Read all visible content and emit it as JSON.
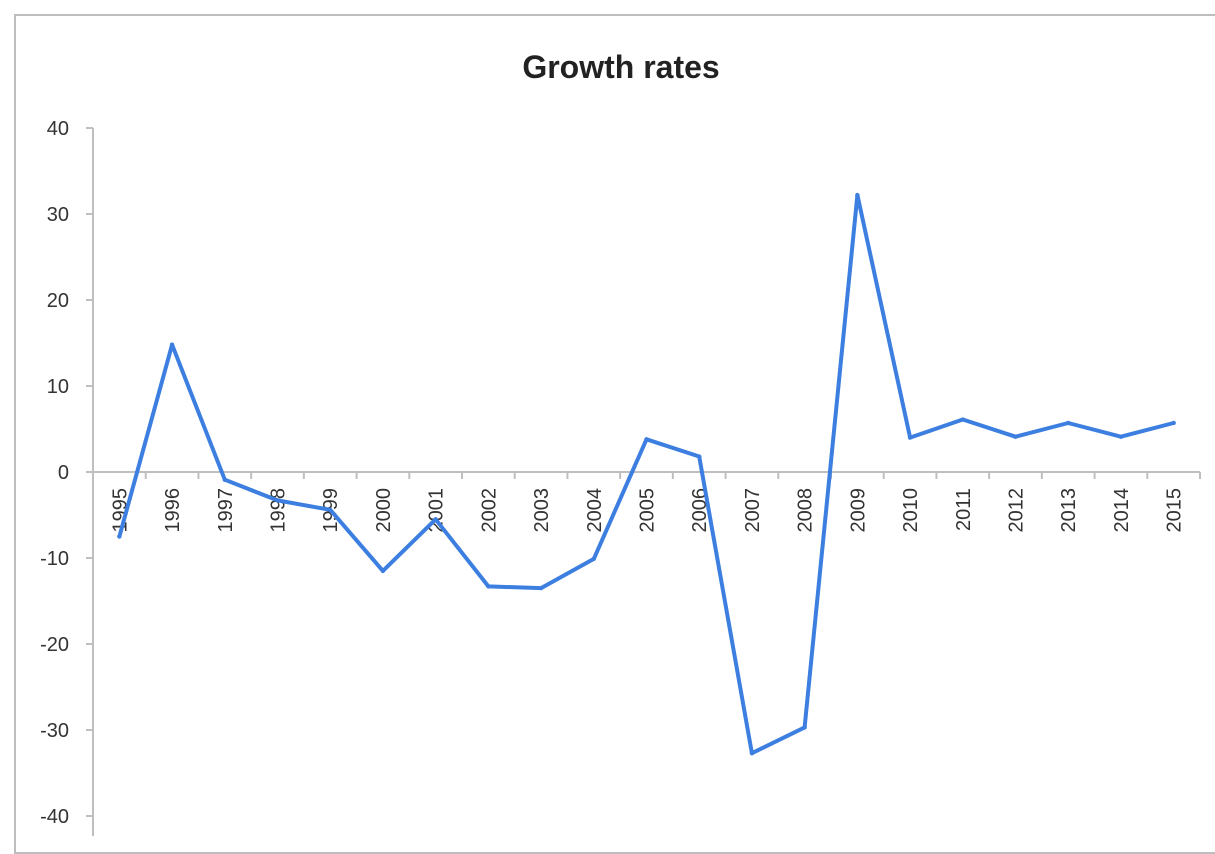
{
  "chart_data": {
    "type": "line",
    "title": "Growth rates",
    "xlabel": "",
    "ylabel": "",
    "ylim": [
      -40,
      40
    ],
    "yticks": [
      40,
      30,
      20,
      10,
      0,
      -10,
      -20,
      -30,
      -40
    ],
    "categories": [
      "1995",
      "1996",
      "1997",
      "1998",
      "1999",
      "2000",
      "2001",
      "2002",
      "2003",
      "2004",
      "2005",
      "2006",
      "2007",
      "2008",
      "2009",
      "2010",
      "2011",
      "2012",
      "2013",
      "2014",
      "2015"
    ],
    "series": [
      {
        "values": [
          -7.5,
          14.8,
          -0.9,
          -3.3,
          -4.4,
          -11.5,
          -5.5,
          -13.3,
          -13.5,
          -10.1,
          3.8,
          1.8,
          -32.7,
          -29.7,
          32.2,
          4.0,
          6.1,
          4.1,
          5.7,
          4.1,
          5.7
        ]
      }
    ],
    "colors": {
      "line": "#3d7fe0",
      "axis": "#bfbfbf",
      "frame": "#bdbdbd"
    },
    "grid": false,
    "legend": "none"
  }
}
